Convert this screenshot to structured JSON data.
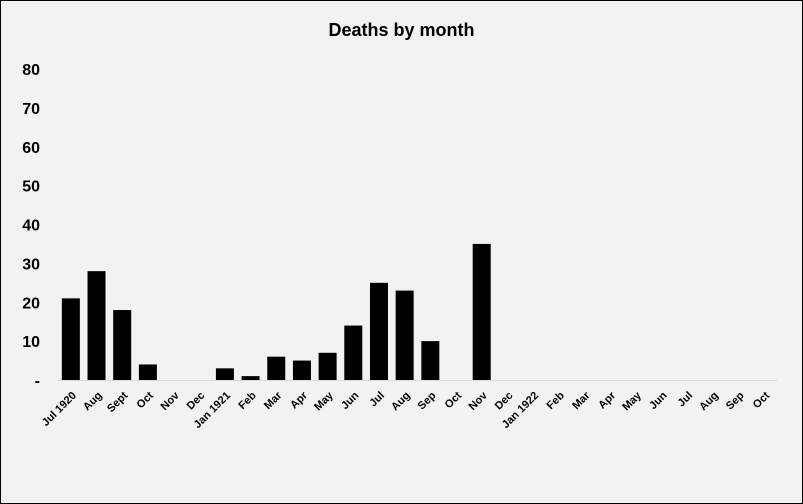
{
  "chart_data": {
    "type": "bar",
    "title": "Deaths by month",
    "xlabel": "",
    "ylabel": "",
    "ylim": [
      0,
      80
    ],
    "yticks": [
      0,
      10,
      20,
      30,
      40,
      50,
      60,
      70,
      80
    ],
    "ytick_labels": [
      "-",
      "10",
      "20",
      "30",
      "40",
      "50",
      "60",
      "70",
      "80"
    ],
    "categories": [
      "Jul 1920",
      "Aug",
      "Sept",
      "Oct",
      "Nov",
      "Dec",
      "Jan 1921",
      "Feb",
      "Mar",
      "Apr",
      "May",
      "Jun",
      "Jul",
      "Aug",
      "Sep",
      "Oct",
      "Nov",
      "Dec",
      "Jan 1922",
      "Feb",
      "Mar",
      "Apr",
      "May",
      "Jun",
      "Jul",
      "Aug",
      "Sep",
      "Oct"
    ],
    "values": [
      21,
      28,
      18,
      4,
      0,
      0,
      3,
      1,
      6,
      5,
      7,
      14,
      25,
      23,
      10,
      0,
      35,
      0,
      0,
      0,
      0,
      0,
      0,
      0,
      0,
      0,
      0,
      0
    ],
    "grid": false,
    "legend": "none",
    "bar_color": "#000000",
    "background_color": "#f2f2f2"
  }
}
